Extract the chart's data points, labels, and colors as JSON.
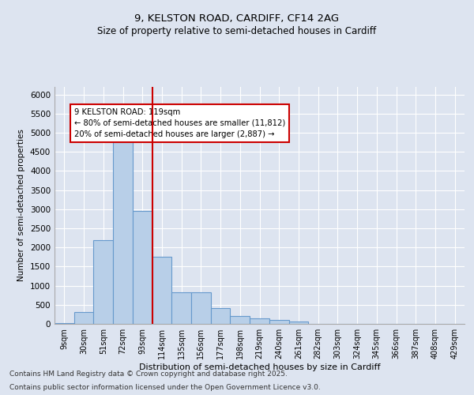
{
  "title1": "9, KELSTON ROAD, CARDIFF, CF14 2AG",
  "title2": "Size of property relative to semi-detached houses in Cardiff",
  "xlabel": "Distribution of semi-detached houses by size in Cardiff",
  "ylabel": "Number of semi-detached properties",
  "categories": [
    "9sqm",
    "30sqm",
    "51sqm",
    "72sqm",
    "93sqm",
    "114sqm",
    "135sqm",
    "156sqm",
    "177sqm",
    "198sqm",
    "219sqm",
    "240sqm",
    "261sqm",
    "282sqm",
    "303sqm",
    "324sqm",
    "345sqm",
    "366sqm",
    "387sqm",
    "408sqm",
    "429sqm"
  ],
  "values": [
    30,
    300,
    2200,
    4950,
    2950,
    1750,
    820,
    820,
    420,
    200,
    150,
    100,
    60,
    0,
    0,
    0,
    0,
    0,
    0,
    0,
    0
  ],
  "bar_color": "#b8cfe8",
  "bar_edge_color": "#6699cc",
  "vline_index": 5,
  "vline_color": "#cc0000",
  "annotation_title": "9 KELSTON ROAD: 119sqm",
  "annotation_line1": "← 80% of semi-detached houses are smaller (11,812)",
  "annotation_line2": "20% of semi-detached houses are larger (2,887) →",
  "annotation_box_color": "#cc0000",
  "ylim": [
    0,
    6200
  ],
  "yticks": [
    0,
    500,
    1000,
    1500,
    2000,
    2500,
    3000,
    3500,
    4000,
    4500,
    5000,
    5500,
    6000
  ],
  "footnote1": "Contains HM Land Registry data © Crown copyright and database right 2025.",
  "footnote2": "Contains public sector information licensed under the Open Government Licence v3.0.",
  "bg_color": "#dde4f0",
  "plot_bg_color": "#dde4f0"
}
